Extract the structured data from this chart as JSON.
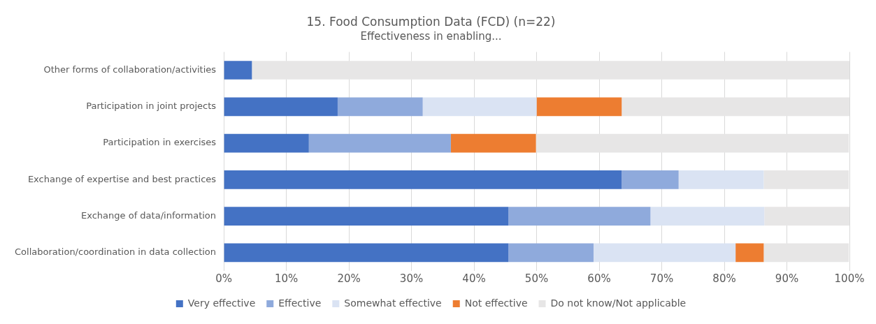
{
  "chart_data": {
    "type": "bar",
    "orientation": "horizontal",
    "stacked": true,
    "title": "15. Food Consumption Data (FCD) (n=22)",
    "subtitle": "Effectiveness in enabling...",
    "categories": [
      "Other forms of collaboration/activities",
      "Participation in joint projects",
      "Participation in exercises",
      "Exchange of expertise and best practices",
      "Exchange of data/information",
      "Collaboration/coordination in data collection"
    ],
    "series": [
      {
        "name": "Very effective",
        "color": "#4472c4",
        "values": [
          4.5,
          18.2,
          13.6,
          63.6,
          45.5,
          45.5
        ]
      },
      {
        "name": "Effective",
        "color": "#8faadc",
        "values": [
          0,
          13.6,
          22.7,
          9.1,
          22.7,
          13.6
        ]
      },
      {
        "name": "Somewhat effective",
        "color": "#dae3f3",
        "values": [
          0,
          18.2,
          0,
          13.6,
          18.2,
          22.7
        ]
      },
      {
        "name": "Not effective",
        "color": "#ed7d31",
        "values": [
          0,
          13.6,
          13.6,
          0,
          0,
          4.5
        ]
      },
      {
        "name": "Do not know/Not applicable",
        "color": "#e7e6e6",
        "values": [
          95.5,
          36.4,
          50,
          13.6,
          13.6,
          13.6
        ]
      }
    ],
    "xlim": [
      0,
      100
    ],
    "xticks": [
      {
        "value": 0,
        "label": "0%"
      },
      {
        "value": 10,
        "label": "10%"
      },
      {
        "value": 20,
        "label": "20%"
      },
      {
        "value": 30,
        "label": "30%"
      },
      {
        "value": 40,
        "label": "40%"
      },
      {
        "value": 50,
        "label": "50%"
      },
      {
        "value": 60,
        "label": "60%"
      },
      {
        "value": 70,
        "label": "70%"
      },
      {
        "value": 80,
        "label": "80%"
      },
      {
        "value": 90,
        "label": "90%"
      },
      {
        "value": 100,
        "label": "100%"
      }
    ],
    "grid": "x",
    "legend": "bottom"
  }
}
